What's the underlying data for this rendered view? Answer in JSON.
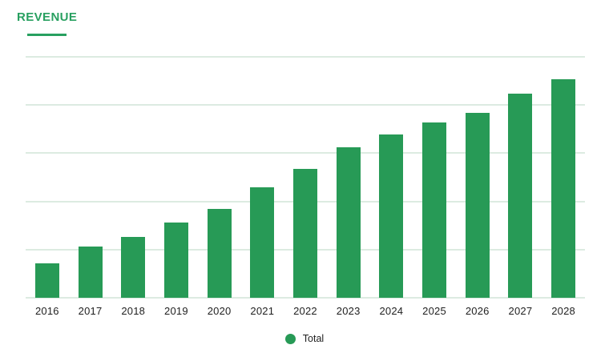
{
  "header": {
    "title": "REVENUE"
  },
  "colors": {
    "title_green": "#28a060",
    "bar_green": "#279a56",
    "gridline": "#dcebe1",
    "axis_text": "#1f1f1f",
    "legend_text": "#212121",
    "background": "#ffffff"
  },
  "legend": {
    "items": [
      {
        "label": "Total",
        "color": "#279a56"
      }
    ]
  },
  "chart_data": {
    "type": "bar",
    "title": "REVENUE",
    "categories": [
      "2016",
      "2017",
      "2018",
      "2019",
      "2020",
      "2021",
      "2022",
      "2023",
      "2024",
      "2025",
      "2026",
      "2027",
      "2028"
    ],
    "series": [
      {
        "name": "Total",
        "values": [
          0.71,
          1.06,
          1.26,
          1.56,
          1.85,
          2.3,
          2.67,
          3.13,
          3.39,
          3.64,
          3.84,
          4.24,
          4.54
        ]
      }
    ],
    "xlabel": "",
    "ylabel": "",
    "ylim": [
      0,
      5
    ],
    "gridline_interval": 1,
    "grid": true,
    "y_tick_labels_visible": false,
    "legend_position": "bottom-center"
  }
}
